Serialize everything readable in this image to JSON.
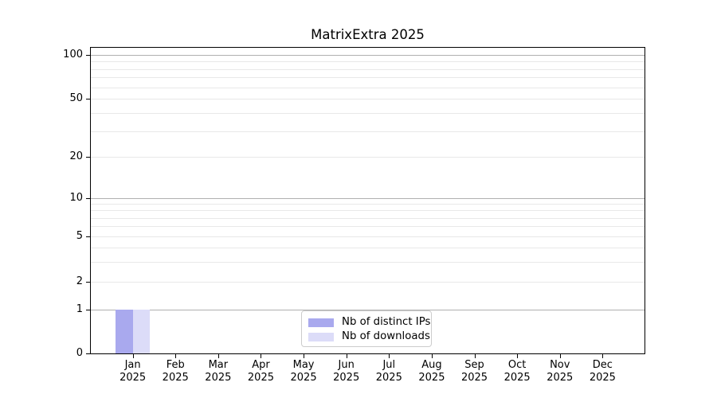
{
  "title": "MatrixExtra 2025",
  "chart_data": {
    "type": "bar",
    "title": "MatrixExtra 2025",
    "categories": [
      "Jan 2025",
      "Feb 2025",
      "Mar 2025",
      "Apr 2025",
      "May 2025",
      "Jun 2025",
      "Jul 2025",
      "Aug 2025",
      "Sep 2025",
      "Oct 2025",
      "Nov 2025",
      "Dec 2025"
    ],
    "series": [
      {
        "name": "Nb of distinct IPs",
        "color": "#a9a9ee",
        "values": [
          1,
          0,
          0,
          0,
          0,
          0,
          0,
          0,
          0,
          0,
          0,
          0
        ]
      },
      {
        "name": "Nb of downloads",
        "color": "#dcdcf8",
        "values": [
          1,
          0,
          0,
          0,
          0,
          0,
          0,
          0,
          0,
          0,
          0,
          0
        ]
      }
    ],
    "xlabel": "",
    "ylabel": "",
    "y_axis": {
      "scale": "log-like",
      "ticks": [
        0,
        1,
        2,
        5,
        10,
        20,
        50,
        100
      ],
      "ylim": [
        0,
        115
      ],
      "major_gridlines": [
        1,
        10,
        100
      ],
      "minor_gridlines": [
        2,
        3,
        4,
        5,
        6,
        7,
        8,
        9,
        20,
        30,
        40,
        50,
        60,
        70,
        80,
        90
      ]
    },
    "grid": "horizontal only",
    "legend_position": "lower center inside plot",
    "colors": {
      "bar_distinct_ips": "#a9a9ee",
      "bar_downloads": "#dcdcf8",
      "grid_major": "#b0b0b0",
      "grid_minor": "#e8e8e8",
      "axis": "#000000",
      "legend_border": "#cccccc",
      "background": "#ffffff"
    }
  },
  "legend": {
    "items": [
      {
        "label": "Nb of distinct IPs"
      },
      {
        "label": "Nb of downloads"
      }
    ]
  }
}
